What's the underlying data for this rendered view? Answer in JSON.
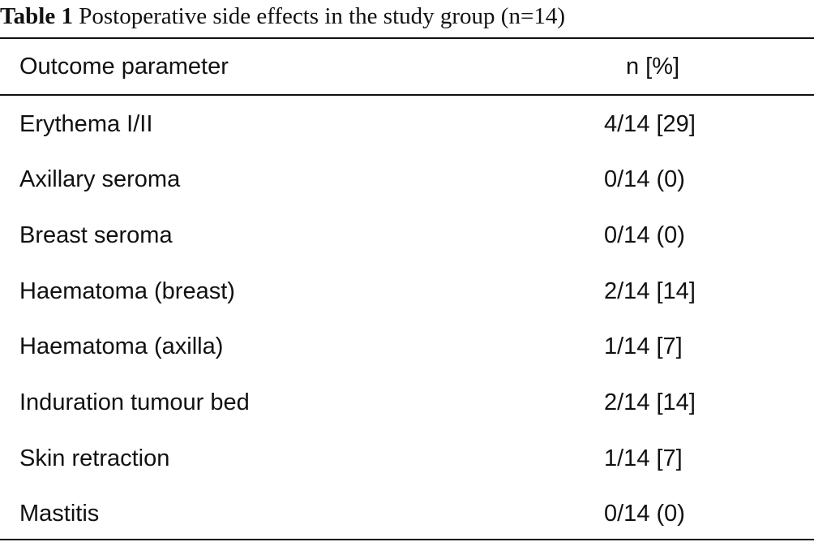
{
  "caption": {
    "label": "Table 1",
    "text": "Postoperative side effects in the study group (n=14)"
  },
  "table": {
    "headers": [
      "Outcome parameter",
      "n [%]"
    ],
    "rows": [
      [
        "Erythema I/II",
        "4/14 [29]"
      ],
      [
        "Axillary seroma",
        "0/14 (0)"
      ],
      [
        "Breast seroma",
        "0/14 (0)"
      ],
      [
        "Haematoma (breast)",
        "2/14 [14]"
      ],
      [
        "Haematoma (axilla)",
        "1/14 [7]"
      ],
      [
        "Induration tumour bed",
        "2/14 [14]"
      ],
      [
        "Skin retraction",
        "1/14 [7]"
      ],
      [
        "Mastitis",
        "0/14 (0)"
      ]
    ]
  }
}
